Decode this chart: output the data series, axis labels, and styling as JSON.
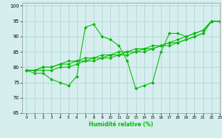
{
  "xlabel": "Humidité relative (%)",
  "xlim": [
    -0.5,
    23
  ],
  "ylim": [
    65,
    101
  ],
  "yticks": [
    65,
    70,
    75,
    80,
    85,
    90,
    95,
    100
  ],
  "xticks": [
    0,
    1,
    2,
    3,
    4,
    5,
    6,
    7,
    8,
    9,
    10,
    11,
    12,
    13,
    14,
    15,
    16,
    17,
    18,
    19,
    20,
    21,
    22,
    23
  ],
  "line_color": "#00bb00",
  "bg_color": "#d6eeee",
  "grid_color": "#aad0d0",
  "series": [
    [
      79,
      78,
      78,
      76,
      75,
      74,
      77,
      93,
      94,
      90,
      89,
      87,
      82,
      73,
      74,
      75,
      85,
      91,
      91,
      90,
      91,
      92,
      95,
      95
    ],
    [
      79,
      79,
      79,
      79,
      80,
      80,
      81,
      82,
      82,
      83,
      83,
      84,
      84,
      85,
      85,
      86,
      87,
      87,
      88,
      89,
      90,
      91,
      95,
      95
    ],
    [
      79,
      79,
      80,
      80,
      81,
      81,
      82,
      82,
      83,
      83,
      84,
      84,
      85,
      85,
      86,
      86,
      87,
      88,
      88,
      89,
      90,
      91,
      95,
      95
    ],
    [
      79,
      79,
      80,
      80,
      81,
      82,
      82,
      83,
      83,
      84,
      84,
      85,
      85,
      86,
      86,
      87,
      87,
      88,
      89,
      90,
      91,
      92,
      95,
      95
    ]
  ]
}
